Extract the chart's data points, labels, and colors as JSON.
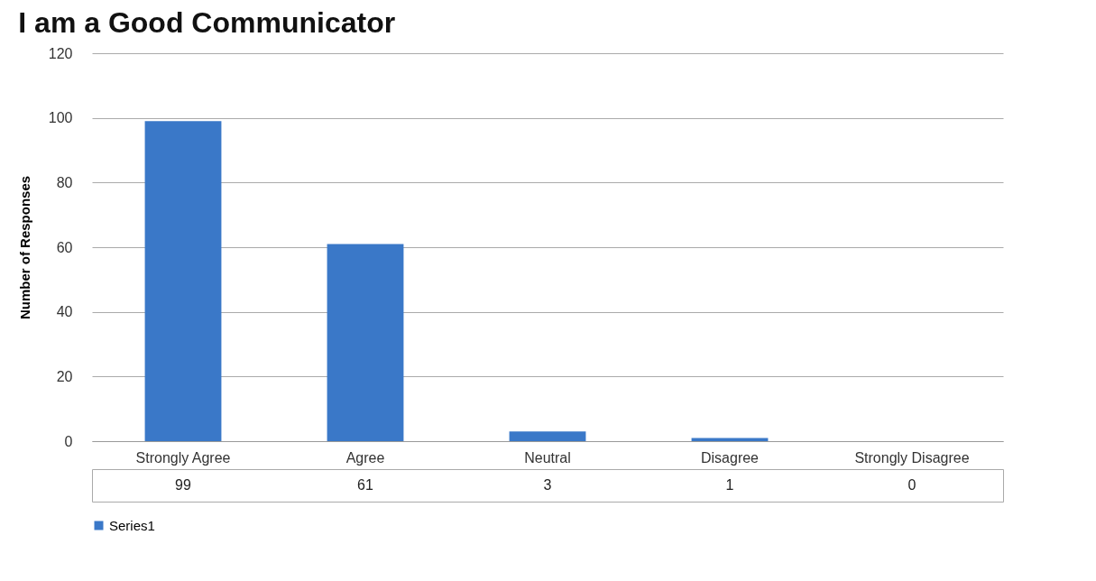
{
  "chart_data": {
    "type": "bar",
    "title": "I am a Good Communicator",
    "ylabel": "Number of Responses",
    "categories": [
      "Strongly Agree",
      "Agree",
      "Neutral",
      "Disagree",
      "Strongly Disagree"
    ],
    "series": [
      {
        "name": "Series1",
        "color": "#3a78c8",
        "values": [
          99,
          61,
          3,
          1,
          0
        ]
      }
    ],
    "ylim": [
      0,
      120
    ],
    "yticks": [
      0,
      20,
      40,
      60,
      80,
      100,
      120
    ],
    "grid": "y",
    "data_labels": true,
    "legend": "bottom"
  }
}
